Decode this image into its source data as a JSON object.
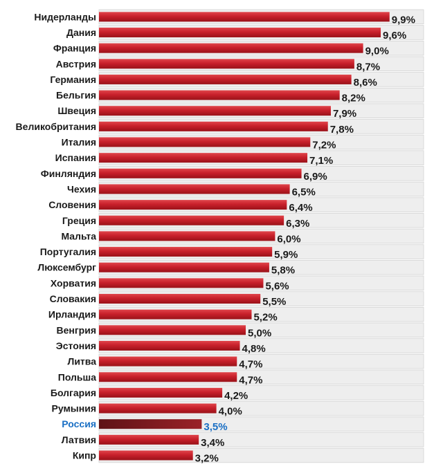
{
  "chart_data": {
    "type": "bar",
    "orientation": "horizontal",
    "categories": [
      "Нидерланды",
      "Дания",
      "Франция",
      "Австрия",
      "Германия",
      "Бельгия",
      "Швеция",
      "Великобритания",
      "Италия",
      "Испания",
      "Финляндия",
      "Чехия",
      "Словения",
      "Греция",
      "Мальта",
      "Португалия",
      "Люксембург",
      "Хорватия",
      "Словакия",
      "Ирландия",
      "Венгрия",
      "Эстония",
      "Литва",
      "Польша",
      "Болгария",
      "Румыния",
      "Россия",
      "Латвия",
      "Кипр"
    ],
    "values": [
      9.9,
      9.6,
      9.0,
      8.7,
      8.6,
      8.2,
      7.9,
      7.8,
      7.2,
      7.1,
      6.9,
      6.5,
      6.4,
      6.3,
      6.0,
      5.9,
      5.8,
      5.6,
      5.5,
      5.2,
      5.0,
      4.8,
      4.7,
      4.7,
      4.2,
      4.0,
      3.5,
      3.4,
      3.2
    ],
    "value_labels": [
      "9,9%",
      "9,6%",
      "9,0%",
      "8,7%",
      "8,6%",
      "8,2%",
      "7,9%",
      "7,8%",
      "7,2%",
      "7,1%",
      "6,9%",
      "6,5%",
      "6,4%",
      "6,3%",
      "6,0%",
      "5,9%",
      "5,8%",
      "5,6%",
      "5,5%",
      "5,2%",
      "5,0%",
      "4,8%",
      "4,7%",
      "4,7%",
      "4,2%",
      "4,0%",
      "3,5%",
      "3,4%",
      "3,2%"
    ],
    "highlight": "Россия",
    "title": "",
    "xlabel": "",
    "ylabel": "",
    "xlim": [
      0,
      10
    ],
    "grid": true,
    "colors": {
      "bar": "#c8202b",
      "bar_dark": "#a3141d",
      "highlight_bar": "#7a1a1e",
      "highlight_text": "#1a6fc4",
      "row_band": "#eeeeee",
      "row_line": "#d2d2d2"
    }
  }
}
